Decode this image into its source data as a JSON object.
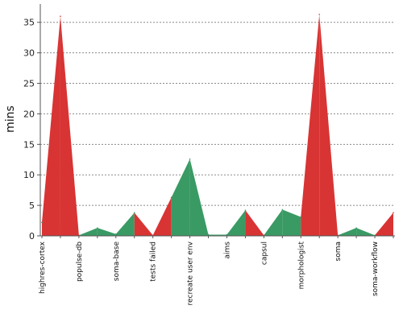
{
  "chart_data": {
    "type": "area",
    "title": "",
    "xlabel": "",
    "ylabel": "mins",
    "ylim": [
      0,
      38
    ],
    "yticks": [
      0,
      5,
      10,
      15,
      20,
      25,
      30,
      35
    ],
    "grid": true,
    "categories": [
      "highres-cortex",
      "populse-db",
      "soma-base",
      "tests failed",
      "recreate user env",
      "aims",
      "capsul",
      "morphologist",
      "soma",
      "soma-workflow"
    ],
    "x": [
      0,
      1,
      2,
      3,
      4,
      5,
      6,
      7,
      8,
      9,
      10,
      11,
      12,
      13,
      14,
      15,
      16,
      17,
      18,
      19
    ],
    "values": [
      2.2,
      36,
      0.1,
      1.3,
      0.3,
      3.8,
      0.1,
      6.3,
      12.6,
      0.2,
      0.2,
      4.2,
      0.1,
      4.3,
      3.1,
      36.3,
      0.1,
      1.3,
      0.1,
      3.8
    ],
    "status": [
      "ok",
      "fail",
      "fail",
      "ok",
      "ok",
      "ok",
      "fail",
      "fail",
      "ok",
      "ok",
      "ok",
      "ok",
      "fail",
      "ok",
      "ok",
      "fail",
      "fail",
      "ok",
      "ok",
      "fail"
    ],
    "label_indices": [
      0,
      2,
      4,
      6,
      8,
      10,
      12,
      14,
      16,
      18
    ],
    "colors": {
      "ok": "#3a9a64",
      "fail": "#d83434",
      "grid": "#8a8a8a",
      "axis": "#555555"
    }
  }
}
